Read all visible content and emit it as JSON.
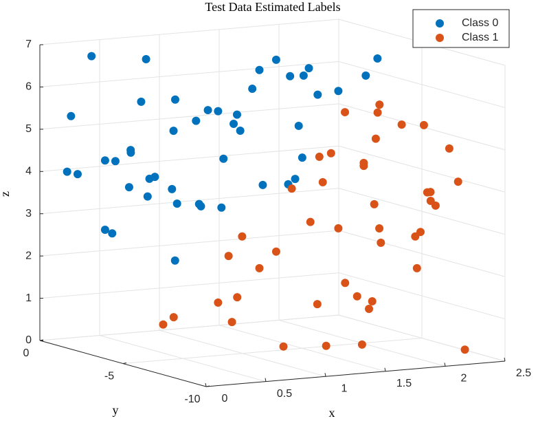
{
  "chart_data": {
    "type": "scatter3d",
    "title": "Test Data Estimated Labels",
    "xlabel": "x",
    "ylabel": "y",
    "zlabel": "z",
    "xlim": [
      0,
      2.5
    ],
    "ylim": [
      -10,
      0
    ],
    "zlim": [
      0,
      7
    ],
    "xticks": [
      0,
      0.5,
      1,
      1.5,
      2,
      2.5
    ],
    "yticks": [
      -10,
      -5,
      0
    ],
    "zticks": [
      0,
      1,
      2,
      3,
      4,
      5,
      6,
      7
    ],
    "grid": true,
    "legend": "top-right",
    "series": [
      {
        "name": "Class 0",
        "color": "#0072BD",
        "x": [
          0.3,
          0.62,
          0.18,
          0.59,
          0.79,
          0.78,
          0.91,
          0.98,
          1.04,
          1.15,
          1.13,
          1.17,
          1.24,
          1.28,
          1.38,
          1.46,
          1.54,
          1.57,
          1.62,
          1.74,
          1.97,
          1.9,
          1.51,
          1.53,
          0.16,
          0.22,
          0.38,
          0.44,
          0.53,
          0.53,
          0.52,
          0.64,
          0.67,
          0.63,
          0.77,
          0.8,
          0.93,
          0.94,
          1.06,
          1.07,
          1.3,
          1.45,
          1.49,
          0.38,
          0.42,
          0.79
        ],
        "y": [
          -0.95,
          -1.93,
          -0.58,
          -1.85,
          -2.46,
          -2.43,
          -2.85,
          -3.06,
          -3.24,
          -3.59,
          -3.53,
          -3.64,
          -3.86,
          -4.0,
          -4.29,
          -4.55,
          -4.79,
          -4.89,
          -5.06,
          -5.44,
          -6.14,
          -5.94,
          -4.71,
          -4.78,
          -0.49,
          -0.69,
          -1.19,
          -1.38,
          -1.65,
          -1.66,
          -1.63,
          -1.99,
          -2.1,
          -1.95,
          -2.41,
          -2.5,
          -2.89,
          -2.93,
          -3.3,
          -3.35,
          -4.06,
          -4.51,
          -4.64,
          -1.19,
          -1.33,
          -2.45
        ],
        "z": [
          6.76,
          6.72,
          5.33,
          5.71,
          5.78,
          5.04,
          5.29,
          5.55,
          5.53,
          5.46,
          5.24,
          5.08,
          6.08,
          6.53,
          6.78,
          6.4,
          6.42,
          6.6,
          5.98,
          6.08,
          6.87,
          6.46,
          5.23,
          4.48,
          4.01,
          3.96,
          4.3,
          4.29,
          4.56,
          4.5,
          3.68,
          3.89,
          3.94,
          3.47,
          3.66,
          3.32,
          3.32,
          3.27,
          3.25,
          4.41,
          3.81,
          3.84,
          3.97,
          2.66,
          2.58,
          1.97
        ]
      },
      {
        "name": "Class 1",
        "color": "#D95319",
        "x": [
          1.78,
          1.97,
          1.98,
          2.11,
          2.24,
          1.96,
          2.39,
          1.7,
          1.63,
          1.89,
          1.89,
          1.65,
          2.44,
          1.47,
          2.26,
          2.28,
          2.28,
          2.31,
          1.95,
          1.58,
          1.74,
          1.98,
          2.22,
          2.19,
          1.18,
          1.99,
          1.38,
          1.1,
          1.28,
          2.2,
          1.78,
          1.85,
          1.94,
          1.92,
          1.62,
          1.04,
          1.15,
          0.78,
          0.72,
          1.12,
          1.42,
          1.67,
          1.88,
          2.48
        ],
        "y": [
          -5.55,
          -6.15,
          -6.19,
          -6.59,
          -6.99,
          -6.11,
          -7.44,
          -5.29,
          -5.09,
          -5.89,
          -5.89,
          -5.15,
          -7.61,
          -4.58,
          -7.05,
          -7.1,
          -7.11,
          -7.19,
          -6.09,
          -4.91,
          -5.44,
          -6.18,
          -6.93,
          -6.83,
          -3.68,
          -6.2,
          -4.29,
          -3.44,
          -4.0,
          -6.86,
          -5.56,
          -5.78,
          -6.04,
          -5.99,
          -5.04,
          -3.24,
          -3.6,
          -2.44,
          -2.24,
          -3.5,
          -4.44,
          -5.21,
          -5.86,
          -7.73
        ],
        "z": [
          5.58,
          5.59,
          5.78,
          5.32,
          5.32,
          4.97,
          4.78,
          4.6,
          4.51,
          4.39,
          4.32,
          3.91,
          4.0,
          3.74,
          3.73,
          3.74,
          3.53,
          3.42,
          3.42,
          2.96,
          2.83,
          2.85,
          2.79,
          2.68,
          2.58,
          2.51,
          2.24,
          2.11,
          1.84,
          1.93,
          1.54,
          1.23,
          1.12,
          0.94,
          1.02,
          1.0,
          1.14,
          0.63,
          0.45,
          0.55,
          0,
          0.04,
          0.09,
          0.03
        ]
      }
    ]
  }
}
